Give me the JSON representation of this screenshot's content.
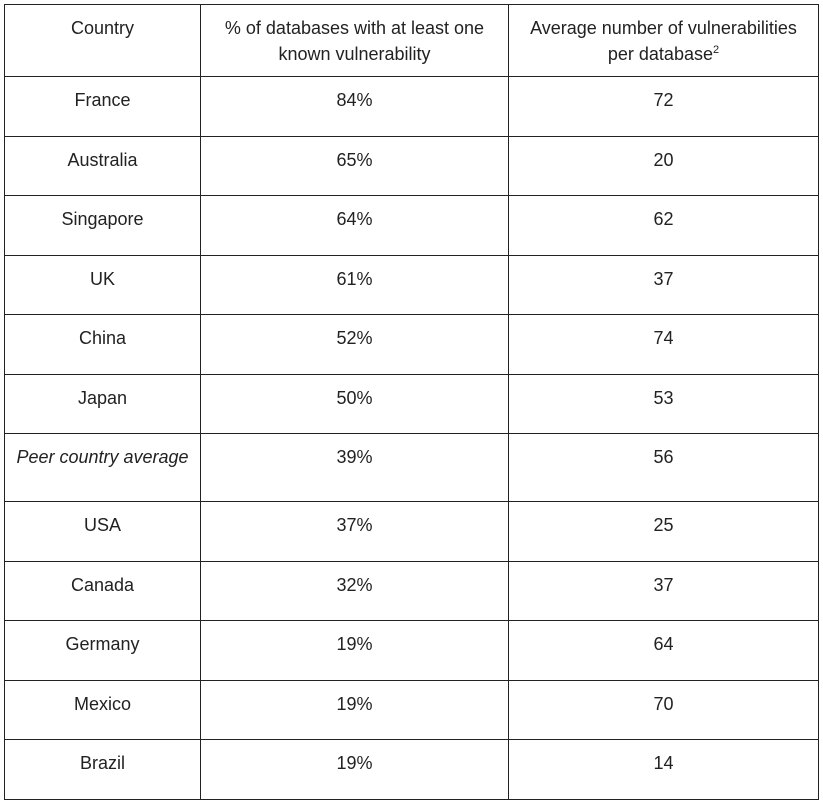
{
  "table": {
    "headers": {
      "country": "Country",
      "percent": "% of databases with at least one known vulnerability",
      "average": "Average number of vulnerabilities per database",
      "average_footnote": "2"
    },
    "rows": [
      {
        "country": "France",
        "percent": "84%",
        "average": "72"
      },
      {
        "country": "Australia",
        "percent": "65%",
        "average": "20"
      },
      {
        "country": "Singapore",
        "percent": "64%",
        "average": "62"
      },
      {
        "country": "UK",
        "percent": "61%",
        "average": "37"
      },
      {
        "country": "China",
        "percent": "52%",
        "average": "74"
      },
      {
        "country": "Japan",
        "percent": "50%",
        "average": "53"
      },
      {
        "country": "Peer country average",
        "percent": "39%",
        "average": "56"
      },
      {
        "country": "USA",
        "percent": "37%",
        "average": "25"
      },
      {
        "country": "Canada",
        "percent": "32%",
        "average": "37"
      },
      {
        "country": "Germany",
        "percent": "19%",
        "average": "64"
      },
      {
        "country": "Mexico",
        "percent": "19%",
        "average": "70"
      },
      {
        "country": "Brazil",
        "percent": "19%",
        "average": "14"
      }
    ]
  }
}
